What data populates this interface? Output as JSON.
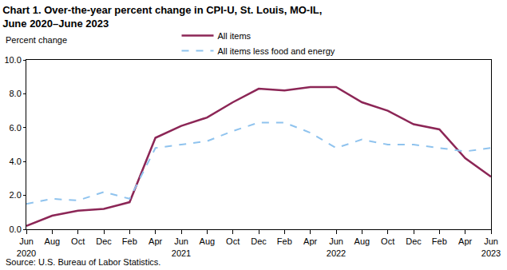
{
  "chart_data": {
    "type": "line",
    "title": "Chart 1. Over-the-year percent change in CPI-U, St. Louis, MO-IL,\nJune 2020–June 2023",
    "ylabel": "Percent change",
    "annotations": [
      "Source: U.S. Bureau of Labor Statistics."
    ],
    "categories": [
      "Jun\n2020",
      "Aug",
      "Oct",
      "Dec",
      "Feb",
      "Apr",
      "Jun\n2021",
      "Aug",
      "Oct",
      "Dec",
      "Feb",
      "Apr",
      "Jun\n2022",
      "Aug",
      "Oct",
      "Dec",
      "Feb",
      "Apr",
      "Jun\n2023"
    ],
    "series": [
      {
        "name": "All items",
        "color": "#8c2656",
        "line_style": "solid",
        "values": [
          0.2,
          0.8,
          1.1,
          1.2,
          1.6,
          5.4,
          6.1,
          6.6,
          7.5,
          8.3,
          8.2,
          8.4,
          8.4,
          7.5,
          7.0,
          6.2,
          5.9,
          4.2,
          3.1
        ]
      },
      {
        "name": "All items less food and energy",
        "color": "#8fc3ee",
        "line_style": "dashed",
        "values": [
          1.5,
          1.8,
          1.7,
          2.2,
          1.8,
          4.8,
          5.0,
          5.2,
          5.8,
          6.3,
          6.3,
          5.7,
          4.8,
          5.3,
          5.0,
          5.0,
          4.8,
          4.6,
          4.8
        ]
      }
    ],
    "ylim": [
      0,
      10
    ],
    "yticks": [
      {
        "value": 0,
        "label": "0.0"
      },
      {
        "value": 2,
        "label": "2.0"
      },
      {
        "value": 4,
        "label": "4.0"
      },
      {
        "value": 6,
        "label": "6.0"
      },
      {
        "value": 8,
        "label": "8.0"
      },
      {
        "value": 10,
        "label": "10.0"
      }
    ],
    "grid": false,
    "legend": "top"
  }
}
